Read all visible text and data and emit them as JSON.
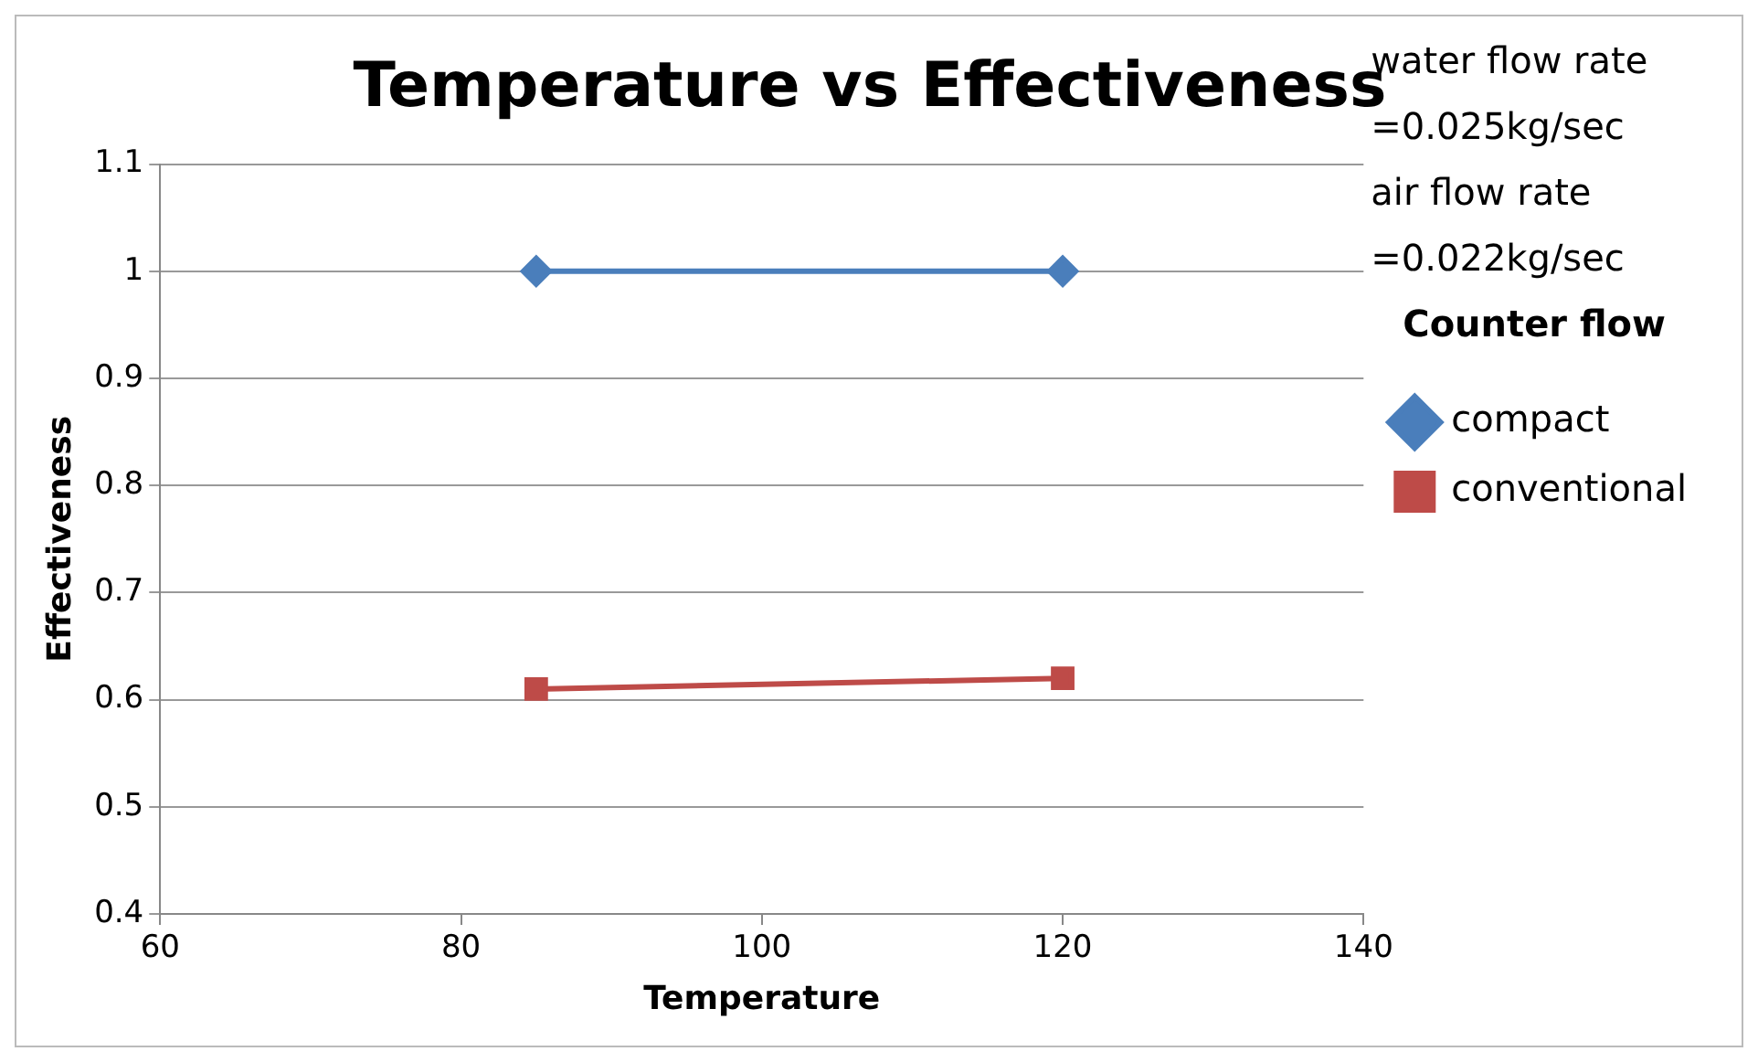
{
  "chart_data": {
    "type": "line",
    "title": "Temperature vs Effectiveness",
    "xlabel": "Temperature",
    "ylabel": "Effectiveness",
    "legend_title": "Counter flow",
    "annotations": [
      "water flow rate",
      "=0.025kg/sec",
      "air flow rate",
      "=0.022kg/sec"
    ],
    "series": [
      {
        "name": "compact",
        "color": "#4a7ebb",
        "marker": "diamond",
        "values": [
          1.0,
          1.0
        ]
      },
      {
        "name": "conventional",
        "color": "#be4b48",
        "marker": "square",
        "values": [
          0.61,
          0.62
        ]
      }
    ],
    "x": [
      85,
      120
    ],
    "xlim": [
      60,
      140
    ],
    "xticks": [
      60,
      80,
      100,
      120,
      140
    ],
    "ylim": [
      0.4,
      1.1
    ],
    "yticks": [
      0.4,
      0.5,
      0.6,
      0.7,
      0.8,
      0.9,
      1,
      1.1
    ],
    "grid": "y",
    "legend": "right",
    "line_style": "solid"
  }
}
